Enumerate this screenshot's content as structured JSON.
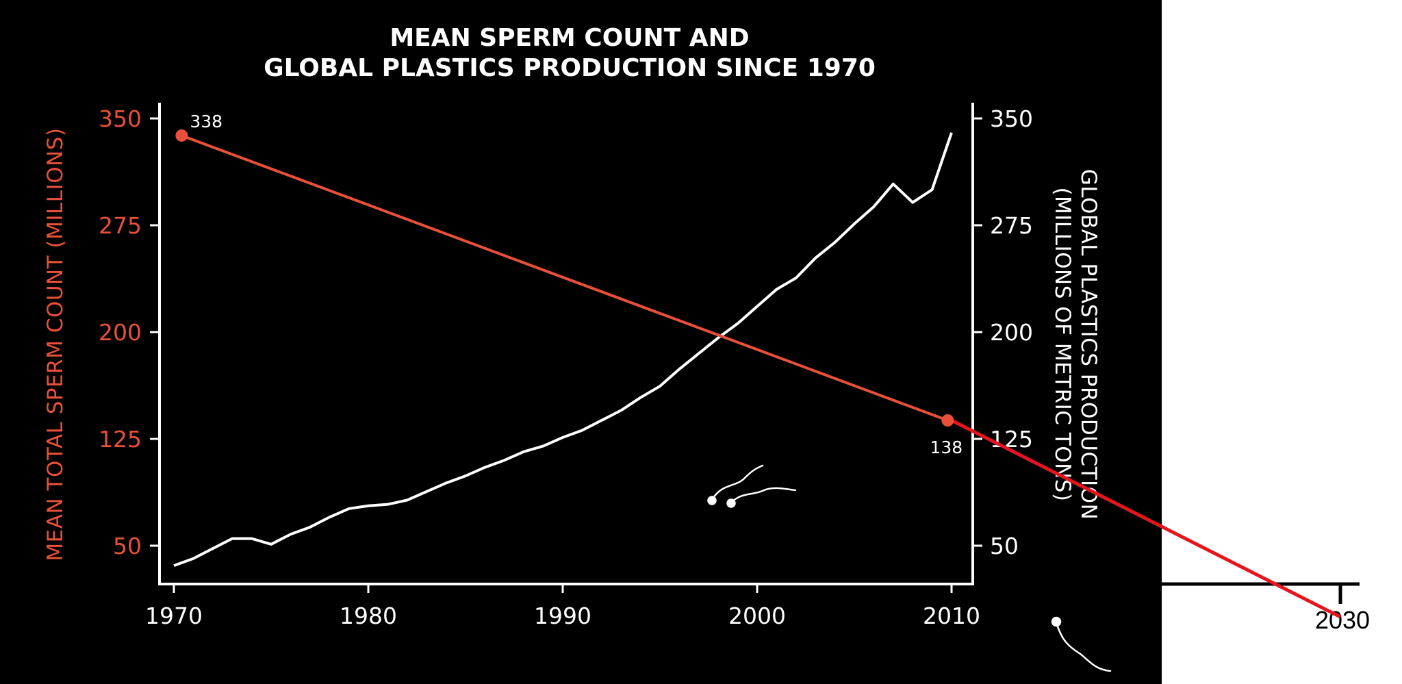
{
  "chart_data": {
    "type": "line",
    "title_lines": [
      "MEAN SPERM COUNT AND",
      "GLOBAL PLASTICS PRODUCTION SINCE 1970"
    ],
    "x_ticks": [
      1970,
      1980,
      1990,
      2000,
      2010
    ],
    "x_extension_tick": 2030,
    "y_left": {
      "label": "MEAN TOTAL SPERM COUNT (MILLIONS)",
      "ticks": [
        50,
        125,
        200,
        275,
        350
      ],
      "color": "#e8503a"
    },
    "y_right": {
      "label_lines": [
        "GLOBAL PLASTICS PRODUCTION",
        "(MILLIONS OF METRIC TONS)"
      ],
      "ticks": [
        50,
        125,
        200,
        275,
        350
      ],
      "color": "#ffffff"
    },
    "series": [
      {
        "axis": "left",
        "color": "#e8503a",
        "points": [
          [
            1970.4,
            338
          ],
          [
            2009.8,
            138
          ]
        ],
        "labels": [
          "338",
          "138"
        ]
      },
      {
        "axis": "right",
        "color": "#ffffff",
        "points": [
          [
            1970,
            36
          ],
          [
            1971,
            41
          ],
          [
            1972,
            48
          ],
          [
            1973,
            55
          ],
          [
            1974,
            55
          ],
          [
            1975,
            51
          ],
          [
            1976,
            58
          ],
          [
            1977,
            63
          ],
          [
            1978,
            70
          ],
          [
            1979,
            76
          ],
          [
            1980,
            78
          ],
          [
            1981,
            79
          ],
          [
            1982,
            82
          ],
          [
            1983,
            88
          ],
          [
            1984,
            94
          ],
          [
            1985,
            99
          ],
          [
            1986,
            105
          ],
          [
            1987,
            110
          ],
          [
            1988,
            116
          ],
          [
            1989,
            120
          ],
          [
            1990,
            126
          ],
          [
            1991,
            131
          ],
          [
            1992,
            138
          ],
          [
            1993,
            145
          ],
          [
            1994,
            154
          ],
          [
            1995,
            162
          ],
          [
            1996,
            174
          ],
          [
            1997,
            185
          ],
          [
            1998,
            196
          ],
          [
            1999,
            206
          ],
          [
            2000,
            218
          ],
          [
            2001,
            230
          ],
          [
            2002,
            238
          ],
          [
            2003,
            252
          ],
          [
            2004,
            263
          ],
          [
            2005,
            276
          ],
          [
            2006,
            288
          ],
          [
            2007,
            304
          ],
          [
            2008,
            291
          ],
          [
            2009,
            300
          ],
          [
            2010,
            340
          ]
        ]
      }
    ],
    "extension_line": {
      "color": "#e6141e",
      "from": [
        2010,
        138
      ],
      "to": [
        2030,
        0
      ]
    }
  }
}
